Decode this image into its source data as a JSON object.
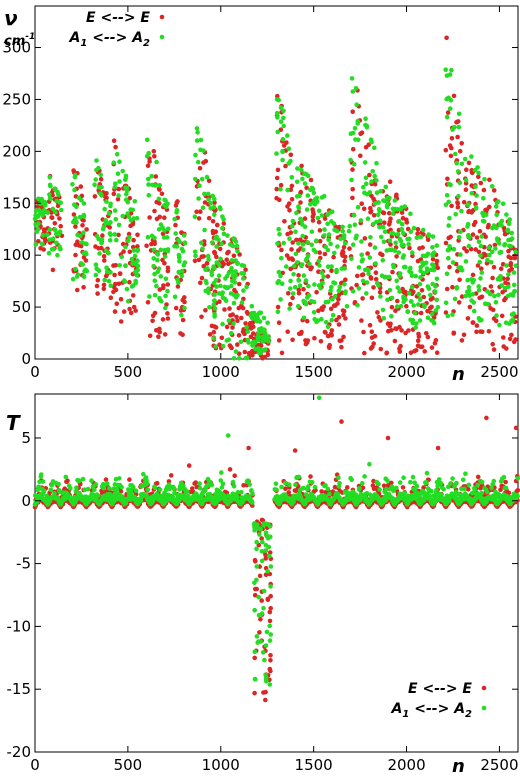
{
  "colors": {
    "series_ee": "#dc2626",
    "series_a1a2": "#22dd22",
    "axis": "#000000",
    "background": "#ffffff"
  },
  "chart_data": [
    {
      "type": "scatter",
      "panel": "top",
      "title": "",
      "ylabel": "ν",
      "ylabel_unit_base": "cm",
      "ylabel_unit_exp": "-1",
      "xlabel": "n",
      "xlim": [
        0,
        2600
      ],
      "ylim": [
        0,
        340
      ],
      "xticks": [
        0,
        500,
        1000,
        1500,
        2000,
        2500
      ],
      "yticks": [
        0,
        50,
        100,
        150,
        200,
        250,
        300
      ],
      "grid": false,
      "legend_position": "top-left",
      "series": [
        {
          "name": "E <--> E",
          "label_parts": [
            "E <--> E"
          ],
          "color": "#dc2626",
          "marker": "circle",
          "groups": [
            {
              "x_start": 0,
              "x_end": 70,
              "y_peak": 160,
              "y_floor": 105
            },
            {
              "x_start": 75,
              "x_end": 145,
              "y_peak": 185,
              "y_floor": 85
            },
            {
              "x_start": 200,
              "x_end": 280,
              "y_peak": 200,
              "y_floor": 65
            },
            {
              "x_start": 320,
              "x_end": 410,
              "y_peak": 205,
              "y_floor": 55
            },
            {
              "x_start": 420,
              "x_end": 555,
              "y_peak": 215,
              "y_floor": 35
            },
            {
              "x_start": 600,
              "x_end": 720,
              "y_peak": 235,
              "y_floor": 20
            },
            {
              "x_start": 750,
              "x_end": 810,
              "y_peak": 185,
              "y_floor": 20
            },
            {
              "x_start": 860,
              "x_end": 970,
              "y_peak": 255,
              "y_floor": 10
            },
            {
              "x_start": 960,
              "x_end": 1150,
              "y_peak": 165,
              "y_floor": 5
            },
            {
              "x_start": 1150,
              "x_end": 1260,
              "y_peak": 40,
              "y_floor": 0
            },
            {
              "x_start": 1300,
              "x_end": 1430,
              "y_peak": 275,
              "y_floor": 5
            },
            {
              "x_start": 1420,
              "x_end": 1680,
              "y_peak": 200,
              "y_floor": 10
            },
            {
              "x_start": 1690,
              "x_end": 1860,
              "y_peak": 295,
              "y_floor": 5
            },
            {
              "x_start": 1860,
              "x_end": 2170,
              "y_peak": 185,
              "y_floor": 5
            },
            {
              "x_start": 2210,
              "x_end": 2330,
              "y_peak": 320,
              "y_floor": 10
            },
            {
              "x_start": 2330,
              "x_end": 2590,
              "y_peak": 215,
              "y_floor": 5
            }
          ]
        },
        {
          "name": "A1 <--> A2",
          "label_parts": [
            "A",
            "1",
            " <--> A",
            "2"
          ],
          "color": "#22dd22",
          "marker": "circle",
          "groups": [
            {
              "x_start": 0,
              "x_end": 70,
              "y_peak": 160,
              "y_floor": 110
            },
            {
              "x_start": 75,
              "x_end": 145,
              "y_peak": 180,
              "y_floor": 95
            },
            {
              "x_start": 200,
              "x_end": 280,
              "y_peak": 190,
              "y_floor": 75
            },
            {
              "x_start": 320,
              "x_end": 410,
              "y_peak": 200,
              "y_floor": 70
            },
            {
              "x_start": 420,
              "x_end": 555,
              "y_peak": 210,
              "y_floor": 55
            },
            {
              "x_start": 600,
              "x_end": 720,
              "y_peak": 230,
              "y_floor": 40
            },
            {
              "x_start": 750,
              "x_end": 810,
              "y_peak": 170,
              "y_floor": 40
            },
            {
              "x_start": 860,
              "x_end": 970,
              "y_peak": 245,
              "y_floor": 40
            },
            {
              "x_start": 960,
              "x_end": 1150,
              "y_peak": 160,
              "y_floor": 0
            },
            {
              "x_start": 1150,
              "x_end": 1260,
              "y_peak": 60,
              "y_floor": 5
            },
            {
              "x_start": 1300,
              "x_end": 1430,
              "y_peak": 270,
              "y_floor": 40
            },
            {
              "x_start": 1420,
              "x_end": 1680,
              "y_peak": 195,
              "y_floor": 30
            },
            {
              "x_start": 1690,
              "x_end": 1860,
              "y_peak": 285,
              "y_floor": 50
            },
            {
              "x_start": 1860,
              "x_end": 2170,
              "y_peak": 175,
              "y_floor": 30
            },
            {
              "x_start": 2210,
              "x_end": 2330,
              "y_peak": 310,
              "y_floor": 40
            },
            {
              "x_start": 2330,
              "x_end": 2590,
              "y_peak": 205,
              "y_floor": 30
            }
          ]
        }
      ]
    },
    {
      "type": "scatter",
      "panel": "bottom",
      "title": "",
      "ylabel": "T",
      "xlabel": "n",
      "xlim": [
        0,
        2600
      ],
      "ylim": [
        -20,
        8.5
      ],
      "xticks": [
        0,
        500,
        1000,
        1500,
        2000,
        2500
      ],
      "yticks": [
        -20,
        -15,
        -10,
        -5,
        0,
        5
      ],
      "grid": false,
      "legend_position": "bottom-right",
      "series": [
        {
          "name": "E <--> E",
          "label_parts": [
            "E <--> E"
          ],
          "color": "#dc2626",
          "marker": "circle",
          "baseline": -0.5,
          "outliers": [
            {
              "x": 830,
              "y": 2.8
            },
            {
              "x": 1050,
              "y": 2.5
            },
            {
              "x": 1150,
              "y": 4.2
            },
            {
              "x": 1400,
              "y": 4.0
            },
            {
              "x": 1650,
              "y": 6.3
            },
            {
              "x": 1900,
              "y": 5.0
            },
            {
              "x": 2170,
              "y": 4.2
            },
            {
              "x": 2430,
              "y": 6.6
            },
            {
              "x": 2590,
              "y": 5.8
            }
          ],
          "dip": {
            "x_start": 1180,
            "x_end": 1270,
            "y_min": -17.8,
            "y_max": -1.5
          }
        },
        {
          "name": "A1 <--> A2",
          "label_parts": [
            "A",
            "1",
            " <--> A",
            "2"
          ],
          "color": "#22dd22",
          "marker": "circle",
          "baseline": -0.3,
          "outliers": [
            {
              "x": 1040,
              "y": 5.2
            },
            {
              "x": 1530,
              "y": 8.2
            },
            {
              "x": 1420,
              "y": 1.9
            },
            {
              "x": 1800,
              "y": 2.9
            },
            {
              "x": 2110,
              "y": 2.2
            },
            {
              "x": 2420,
              "y": 1.0
            }
          ],
          "dip": {
            "x_start": 1180,
            "x_end": 1270,
            "y_min": -14.7,
            "y_max": -1.8
          }
        }
      ]
    }
  ]
}
